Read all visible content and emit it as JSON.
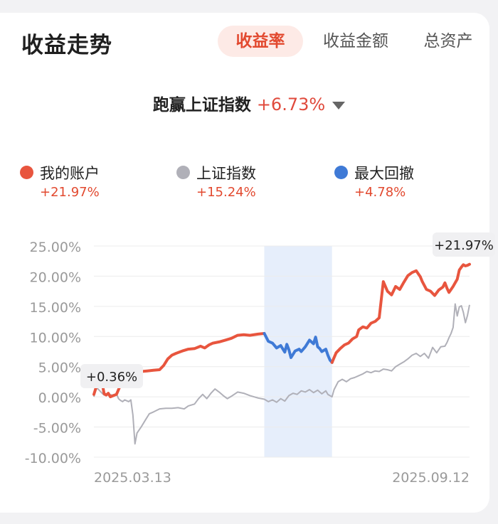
{
  "header": {
    "title": "收益走势",
    "tabs": [
      {
        "label": "收益率",
        "active": true
      },
      {
        "label": "收益金额",
        "active": false
      },
      {
        "label": "总资产",
        "active": false
      }
    ]
  },
  "beat": {
    "label": "跑赢上证指数",
    "value": "+6.73%"
  },
  "legend": [
    {
      "name": "我的账户",
      "value": "+21.97%",
      "color": "#e8553e"
    },
    {
      "name": "上证指数",
      "value": "+15.24%",
      "color": "#b0b0b8"
    },
    {
      "name": "最大回撤",
      "value": "+4.78%",
      "color": "#3f7ad6"
    }
  ],
  "chart_data": {
    "type": "line",
    "ylim": [
      -10,
      25
    ],
    "ytick_labels": [
      "25.00%",
      "20.00%",
      "15.00%",
      "10.00%",
      "5.00%",
      "0.00%",
      "-5.00%",
      "-10.00%"
    ],
    "ytick_values": [
      25,
      20,
      15,
      10,
      5,
      0,
      -5,
      -10
    ],
    "x_start_label": "2025.03.13",
    "x_end_label": "2025.09.12",
    "grid": true,
    "drawdown_range": [
      "2025.06.04",
      "2025.07.07"
    ],
    "series": [
      {
        "name": "我的账户",
        "color": "#e8553e",
        "points": [
          [
            "2025.03.13",
            0.4
          ],
          [
            "2025.03.14",
            1.5
          ],
          [
            "2025.03.17",
            2.3
          ],
          [
            "2025.03.18",
            0.5
          ],
          [
            "2025.03.19",
            0.3
          ],
          [
            "2025.03.20",
            0.6
          ],
          [
            "2025.03.21",
            0.0
          ],
          [
            "2025.03.24",
            0.4
          ],
          [
            "2025.03.25",
            1.2
          ],
          [
            "2025.03.26",
            2.0
          ],
          [
            "2025.03.27",
            2.5
          ],
          [
            "2025.03.28",
            3.1
          ],
          [
            "2025.03.31",
            3.6
          ],
          [
            "2025.04.02",
            3.9
          ],
          [
            "2025.04.05",
            4.2
          ],
          [
            "2025.04.08",
            4.3
          ],
          [
            "2025.04.11",
            4.4
          ],
          [
            "2025.04.14",
            4.5
          ],
          [
            "2025.04.16",
            5.2
          ],
          [
            "2025.04.18",
            6.3
          ],
          [
            "2025.04.20",
            6.9
          ],
          [
            "2025.04.22",
            7.2
          ],
          [
            "2025.04.25",
            7.6
          ],
          [
            "2025.04.28",
            7.9
          ],
          [
            "2025.05.01",
            8.0
          ],
          [
            "2025.05.04",
            8.4
          ],
          [
            "2025.05.06",
            8.1
          ],
          [
            "2025.05.08",
            8.6
          ],
          [
            "2025.05.10",
            8.9
          ],
          [
            "2025.05.13",
            9.1
          ],
          [
            "2025.05.16",
            9.4
          ],
          [
            "2025.05.19",
            9.7
          ],
          [
            "2025.05.22",
            10.2
          ],
          [
            "2025.05.25",
            10.3
          ],
          [
            "2025.05.28",
            10.2
          ],
          [
            "2025.06.01",
            10.4
          ],
          [
            "2025.06.04",
            10.5
          ],
          [
            "2025.06.06",
            9.2
          ],
          [
            "2025.06.08",
            8.9
          ],
          [
            "2025.06.10",
            8.1
          ],
          [
            "2025.06.12",
            8.5
          ],
          [
            "2025.06.14",
            7.4
          ],
          [
            "2025.06.15",
            8.7
          ],
          [
            "2025.06.16",
            7.8
          ],
          [
            "2025.06.17",
            6.5
          ],
          [
            "2025.06.19",
            7.6
          ],
          [
            "2025.06.21",
            7.9
          ],
          [
            "2025.06.22",
            7.5
          ],
          [
            "2025.06.24",
            8.3
          ],
          [
            "2025.06.26",
            9.4
          ],
          [
            "2025.06.28",
            8.8
          ],
          [
            "2025.06.29",
            9.9
          ],
          [
            "2025.06.30",
            8.3
          ],
          [
            "2025.07.01",
            8.0
          ],
          [
            "2025.07.02",
            7.5
          ],
          [
            "2025.07.04",
            7.9
          ],
          [
            "2025.07.05",
            6.9
          ],
          [
            "2025.07.06",
            6.1
          ],
          [
            "2025.07.07",
            5.7
          ],
          [
            "2025.07.09",
            7.3
          ],
          [
            "2025.07.11",
            8.0
          ],
          [
            "2025.07.13",
            8.6
          ],
          [
            "2025.07.15",
            8.9
          ],
          [
            "2025.07.17",
            9.6
          ],
          [
            "2025.07.19",
            10.0
          ],
          [
            "2025.07.20",
            11.1
          ],
          [
            "2025.07.22",
            11.6
          ],
          [
            "2025.07.24",
            11.4
          ],
          [
            "2025.07.26",
            12.2
          ],
          [
            "2025.07.28",
            12.5
          ],
          [
            "2025.07.30",
            13.1
          ],
          [
            "2025.08.01",
            19.1
          ],
          [
            "2025.08.03",
            17.5
          ],
          [
            "2025.08.05",
            16.9
          ],
          [
            "2025.08.07",
            18.3
          ],
          [
            "2025.08.09",
            17.8
          ],
          [
            "2025.08.11",
            19.0
          ],
          [
            "2025.08.13",
            20.1
          ],
          [
            "2025.08.15",
            20.6
          ],
          [
            "2025.08.17",
            20.9
          ],
          [
            "2025.08.19",
            19.9
          ],
          [
            "2025.08.20",
            19.1
          ],
          [
            "2025.08.22",
            17.8
          ],
          [
            "2025.08.24",
            17.5
          ],
          [
            "2025.08.26",
            16.8
          ],
          [
            "2025.08.28",
            17.7
          ],
          [
            "2025.08.30",
            18.2
          ],
          [
            "2025.08.31",
            18.9
          ],
          [
            "2025.09.01",
            18.0
          ],
          [
            "2025.09.02",
            17.3
          ],
          [
            "2025.09.03",
            17.8
          ],
          [
            "2025.09.04",
            18.3
          ],
          [
            "2025.09.05",
            18.9
          ],
          [
            "2025.09.06",
            19.5
          ],
          [
            "2025.09.07",
            21.0
          ],
          [
            "2025.09.08",
            21.5
          ],
          [
            "2025.09.09",
            21.9
          ],
          [
            "2025.09.10",
            21.7
          ],
          [
            "2025.09.11",
            21.8
          ],
          [
            "2025.09.12",
            21.97
          ]
        ]
      },
      {
        "name": "上证指数",
        "color": "#b0b0b8",
        "points": [
          [
            "2025.03.13",
            0.0
          ],
          [
            "2025.03.14",
            1.5
          ],
          [
            "2025.03.15",
            1.3
          ],
          [
            "2025.03.17",
            0.6
          ],
          [
            "2025.03.18",
            0.3
          ],
          [
            "2025.03.20",
            0.4
          ],
          [
            "2025.03.22",
            0.3
          ],
          [
            "2025.03.24",
            0.5
          ],
          [
            "2025.03.25",
            -0.3
          ],
          [
            "2025.03.26",
            -0.6
          ],
          [
            "2025.03.27",
            -0.8
          ],
          [
            "2025.03.28",
            -0.5
          ],
          [
            "2025.03.30",
            -0.8
          ],
          [
            "2025.03.31",
            -0.5
          ],
          [
            "2025.04.01",
            -3.0
          ],
          [
            "2025.04.02",
            -7.8
          ],
          [
            "2025.04.03",
            -6.0
          ],
          [
            "2025.04.05",
            -5.0
          ],
          [
            "2025.04.07",
            -3.9
          ],
          [
            "2025.04.09",
            -2.8
          ],
          [
            "2025.04.11",
            -2.5
          ],
          [
            "2025.04.14",
            -2.0
          ],
          [
            "2025.04.17",
            -1.9
          ],
          [
            "2025.04.20",
            -1.9
          ],
          [
            "2025.04.23",
            -1.8
          ],
          [
            "2025.04.26",
            -2.0
          ],
          [
            "2025.04.28",
            -1.5
          ],
          [
            "2025.05.01",
            -1.2
          ],
          [
            "2025.05.03",
            -0.3
          ],
          [
            "2025.05.05",
            0.4
          ],
          [
            "2025.05.07",
            -0.3
          ],
          [
            "2025.05.09",
            0.6
          ],
          [
            "2025.05.11",
            1.3
          ],
          [
            "2025.05.13",
            0.8
          ],
          [
            "2025.05.15",
            0.2
          ],
          [
            "2025.05.17",
            -0.3
          ],
          [
            "2025.05.19",
            0.1
          ],
          [
            "2025.05.22",
            0.8
          ],
          [
            "2025.05.25",
            0.6
          ],
          [
            "2025.05.28",
            0.2
          ],
          [
            "2025.06.01",
            -0.2
          ],
          [
            "2025.06.04",
            -0.4
          ],
          [
            "2025.06.06",
            -0.8
          ],
          [
            "2025.06.08",
            -0.5
          ],
          [
            "2025.06.10",
            -0.9
          ],
          [
            "2025.06.12",
            -0.3
          ],
          [
            "2025.06.14",
            -0.7
          ],
          [
            "2025.06.16",
            0.2
          ],
          [
            "2025.06.18",
            0.6
          ],
          [
            "2025.06.20",
            0.4
          ],
          [
            "2025.06.22",
            1.0
          ],
          [
            "2025.06.24",
            0.8
          ],
          [
            "2025.06.26",
            1.2
          ],
          [
            "2025.06.28",
            0.7
          ],
          [
            "2025.06.30",
            1.1
          ],
          [
            "2025.07.02",
            0.5
          ],
          [
            "2025.07.04",
            1.0
          ],
          [
            "2025.07.05",
            0.4
          ],
          [
            "2025.07.07",
            0.0
          ],
          [
            "2025.07.08",
            1.2
          ],
          [
            "2025.07.10",
            2.5
          ],
          [
            "2025.07.12",
            2.9
          ],
          [
            "2025.07.14",
            2.5
          ],
          [
            "2025.07.16",
            3.0
          ],
          [
            "2025.07.18",
            3.2
          ],
          [
            "2025.07.20",
            3.5
          ],
          [
            "2025.07.22",
            3.8
          ],
          [
            "2025.07.24",
            4.2
          ],
          [
            "2025.07.26",
            4.0
          ],
          [
            "2025.07.28",
            4.3
          ],
          [
            "2025.07.30",
            4.2
          ],
          [
            "2025.08.01",
            4.6
          ],
          [
            "2025.08.03",
            4.5
          ],
          [
            "2025.08.05",
            4.3
          ],
          [
            "2025.08.07",
            5.0
          ],
          [
            "2025.08.09",
            5.4
          ],
          [
            "2025.08.11",
            5.8
          ],
          [
            "2025.08.13",
            6.3
          ],
          [
            "2025.08.15",
            6.9
          ],
          [
            "2025.08.17",
            7.2
          ],
          [
            "2025.08.19",
            6.7
          ],
          [
            "2025.08.21",
            7.2
          ],
          [
            "2025.08.23",
            6.4
          ],
          [
            "2025.08.25",
            8.2
          ],
          [
            "2025.08.27",
            7.3
          ],
          [
            "2025.08.29",
            8.3
          ],
          [
            "2025.08.31",
            8.4
          ],
          [
            "2025.09.01",
            9.0
          ],
          [
            "2025.09.02",
            9.8
          ],
          [
            "2025.09.03",
            10.5
          ],
          [
            "2025.09.04",
            11.5
          ],
          [
            "2025.09.05",
            15.4
          ],
          [
            "2025.09.06",
            13.4
          ],
          [
            "2025.09.07",
            14.9
          ],
          [
            "2025.09.08",
            15.1
          ],
          [
            "2025.09.09",
            14.0
          ],
          [
            "2025.09.10",
            12.3
          ],
          [
            "2025.09.11",
            13.5
          ],
          [
            "2025.09.12",
            15.24
          ]
        ]
      }
    ],
    "annotations": [
      {
        "text": "+0.36%",
        "date": "2025.03.13",
        "value": 0.36
      },
      {
        "text": "+21.97%",
        "date": "2025.09.12",
        "value": 21.97
      }
    ]
  }
}
